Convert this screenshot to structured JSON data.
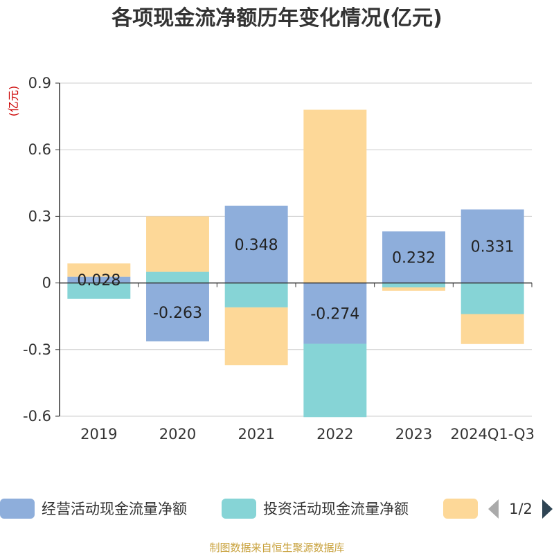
{
  "title": "各项现金流净额历年变化情况(亿元)",
  "unit_label": "(亿元)",
  "source": "制图数据来自恒生聚源数据库",
  "legend_pager": {
    "page": "1/2"
  },
  "chart_data": {
    "type": "bar",
    "stacked": true,
    "categories": [
      "2019",
      "2020",
      "2021",
      "2022",
      "2023",
      "2024Q1-Q3"
    ],
    "ylim": [
      -0.6,
      0.9
    ],
    "yticks": [
      0.9,
      0.6,
      0.3,
      0,
      -0.3,
      -0.6
    ],
    "ytick_labels": [
      "0.9",
      "0.6",
      "0.3",
      "0",
      "-0.3",
      "-0.6"
    ],
    "grid": true,
    "legend_position": "bottom",
    "series": [
      {
        "name": "经营活动现金流量净额",
        "color": "#8eaedb",
        "values": [
          0.028,
          -0.263,
          0.348,
          -0.274,
          0.232,
          0.331
        ],
        "labels": [
          "0.028",
          "-0.263",
          "0.348",
          "-0.274",
          "0.232",
          "0.331"
        ]
      },
      {
        "name": "投资活动现金流量净额",
        "color": "#86d4d6",
        "values": [
          -0.072,
          0.05,
          -0.11,
          -0.33,
          -0.02,
          -0.14
        ],
        "labels": []
      },
      {
        "name": "",
        "color": "#fdd898",
        "values": [
          0.06,
          0.25,
          -0.26,
          0.78,
          -0.015,
          -0.135
        ],
        "labels": []
      }
    ]
  }
}
